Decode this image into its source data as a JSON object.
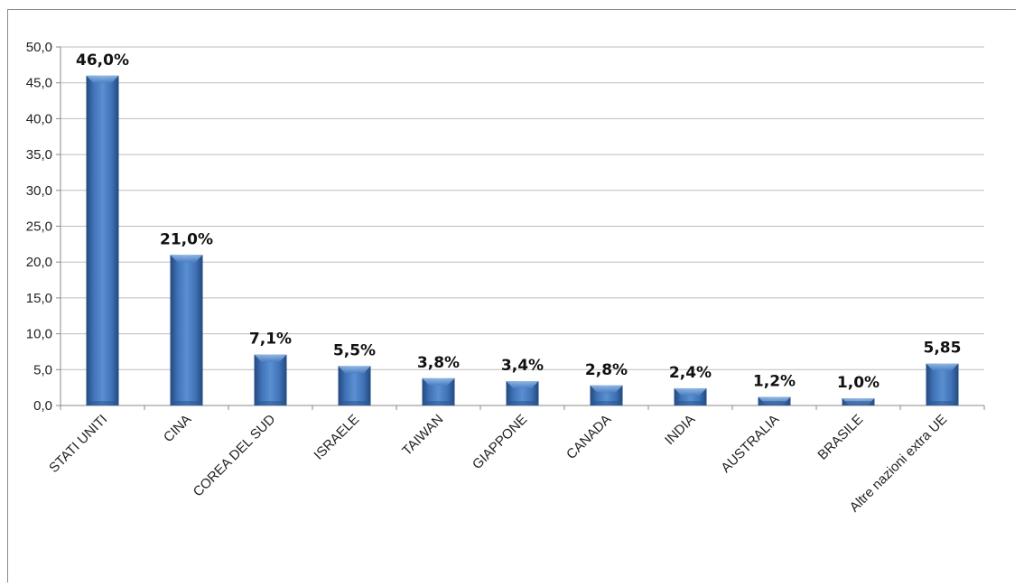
{
  "chart_data": {
    "type": "bar",
    "title": "",
    "xlabel": "",
    "ylabel": "",
    "ylim": [
      0,
      50
    ],
    "y_ticks": [
      "0,0",
      "5,0",
      "10,0",
      "15,0",
      "20,0",
      "25,0",
      "30,0",
      "35,0",
      "40,0",
      "45,0",
      "50,0"
    ],
    "grid": true,
    "legend": "none",
    "categories": [
      "STATI UNITI",
      "CINA",
      "COREA DEL SUD",
      "ISRAELE",
      "TAIWAN",
      "GIAPPONE",
      "CANADA",
      "INDIA",
      "AUSTRALIA",
      "BRASILE",
      "Altre nazioni extra UE"
    ],
    "values": [
      46.0,
      21.0,
      7.1,
      5.5,
      3.8,
      3.4,
      2.8,
      2.4,
      1.2,
      1.0,
      5.85
    ],
    "data_labels": [
      "46,0%",
      "21,0%",
      "7,1%",
      "5,5%",
      "3,8%",
      "3,4%",
      "2,8%",
      "2,4%",
      "1,2%",
      "1,0%",
      "5,85"
    ],
    "colors": {
      "bar": "#4a7ec0",
      "bar_dark": "#2c5590",
      "bar_light": "#9cc0ea",
      "grid": "#bdbdbd",
      "axis": "#8a8a8a"
    }
  }
}
